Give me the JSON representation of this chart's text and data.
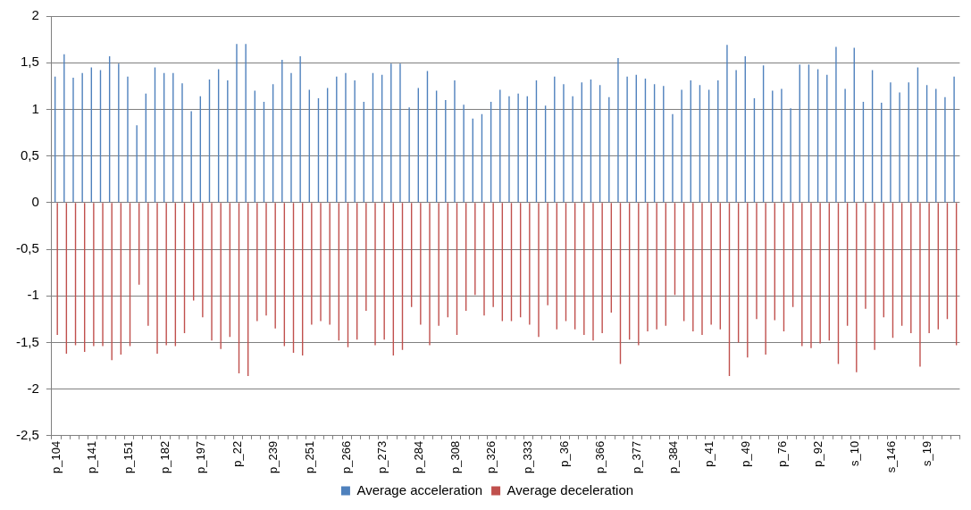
{
  "chart_data": {
    "type": "bar",
    "categories": [
      "p_104",
      null,
      null,
      null,
      "p_141",
      null,
      null,
      null,
      "p_151",
      null,
      null,
      null,
      "p_182",
      null,
      null,
      null,
      "p_197",
      null,
      null,
      null,
      "p_22",
      null,
      null,
      null,
      "p_239",
      null,
      null,
      null,
      "p_251",
      null,
      null,
      null,
      "p_266",
      null,
      null,
      null,
      "p_273",
      null,
      null,
      null,
      "p_284",
      null,
      null,
      null,
      "p_308",
      null,
      null,
      null,
      "p_326",
      null,
      null,
      null,
      "p_333",
      null,
      null,
      null,
      "p_36",
      null,
      null,
      null,
      "p_366",
      null,
      null,
      null,
      "p_377",
      null,
      null,
      null,
      "p_384",
      null,
      null,
      null,
      "p_41",
      null,
      null,
      null,
      "p_49",
      null,
      null,
      null,
      "p_76",
      null,
      null,
      null,
      "p_92",
      null,
      null,
      null,
      "s_10",
      null,
      null,
      null,
      "s_146",
      null,
      null,
      null,
      "s_19",
      null,
      null,
      null
    ],
    "series": [
      {
        "name": "Average acceleration",
        "color": "#4f81bd",
        "values": [
          1.35,
          1.59,
          1.34,
          1.39,
          1.45,
          1.42,
          1.57,
          1.49,
          1.35,
          0.83,
          1.17,
          1.45,
          1.39,
          1.39,
          1.28,
          0.98,
          1.14,
          1.32,
          1.43,
          1.31,
          1.7,
          1.7,
          1.2,
          1.08,
          1.27,
          1.53,
          1.39,
          1.57,
          1.21,
          1.12,
          1.23,
          1.35,
          1.39,
          1.31,
          1.08,
          1.39,
          1.37,
          1.49,
          1.49,
          1.02,
          1.23,
          1.41,
          1.2,
          1.1,
          1.31,
          1.05,
          0.9,
          0.95,
          1.08,
          1.21,
          1.14,
          1.17,
          1.14,
          1.31,
          1.04,
          1.35,
          1.27,
          1.14,
          1.29,
          1.32,
          1.26,
          1.13,
          1.55,
          1.35,
          1.37,
          1.33,
          1.27,
          1.25,
          0.95,
          1.21,
          1.31,
          1.26,
          1.21,
          1.31,
          1.69,
          1.42,
          1.57,
          1.12,
          1.47,
          1.2,
          1.22,
          1.01,
          1.48,
          1.48,
          1.43,
          1.37,
          1.67,
          1.22,
          1.66,
          1.08,
          1.42,
          1.07,
          1.29,
          1.18,
          1.29,
          1.45,
          1.26,
          1.22,
          1.13,
          1.35
        ]
      },
      {
        "name": "Average deceleration",
        "color": "#c0504d",
        "values": [
          -1.42,
          -1.62,
          -1.53,
          -1.6,
          -1.54,
          -1.54,
          -1.69,
          -1.63,
          -1.54,
          -0.88,
          -1.32,
          -1.62,
          -1.53,
          -1.54,
          -1.4,
          -1.05,
          -1.23,
          -1.48,
          -1.57,
          -1.44,
          -1.83,
          -1.86,
          -1.27,
          -1.21,
          -1.35,
          -1.54,
          -1.61,
          -1.64,
          -1.31,
          -1.27,
          -1.31,
          -1.48,
          -1.55,
          -1.47,
          -1.16,
          -1.53,
          -1.47,
          -1.64,
          -1.58,
          -1.12,
          -1.31,
          -1.53,
          -1.32,
          -1.23,
          -1.42,
          -1.16,
          -0.99,
          -1.21,
          -1.12,
          -1.27,
          -1.27,
          -1.23,
          -1.31,
          -1.44,
          -1.1,
          -1.36,
          -1.27,
          -1.36,
          -1.42,
          -1.48,
          -1.4,
          -1.18,
          -1.73,
          -1.47,
          -1.53,
          -1.38,
          -1.36,
          -1.32,
          -0.99,
          -1.27,
          -1.38,
          -1.42,
          -1.31,
          -1.36,
          -1.86,
          -1.5,
          -1.66,
          -1.25,
          -1.63,
          -1.26,
          -1.38,
          -1.12,
          -1.54,
          -1.56,
          -1.51,
          -1.48,
          -1.73,
          -1.32,
          -1.82,
          -1.14,
          -1.58,
          -1.23,
          -1.45,
          -1.32,
          -1.4,
          -1.76,
          -1.4,
          -1.36,
          -1.25,
          -1.53
        ]
      }
    ],
    "ylim": [
      -2.5,
      2
    ],
    "yticks": [
      {
        "value": -2.5,
        "label": "-2,5"
      },
      -2,
      {
        "value": -1.5,
        "label": "-1,5"
      },
      -1,
      {
        "value": -0.5,
        "label": "-0,5"
      },
      0,
      {
        "value": 0.5,
        "label": "0,5"
      },
      1,
      {
        "value": 1.5,
        "label": "1,5"
      },
      2
    ],
    "grid": "y",
    "legend": "bottom"
  }
}
